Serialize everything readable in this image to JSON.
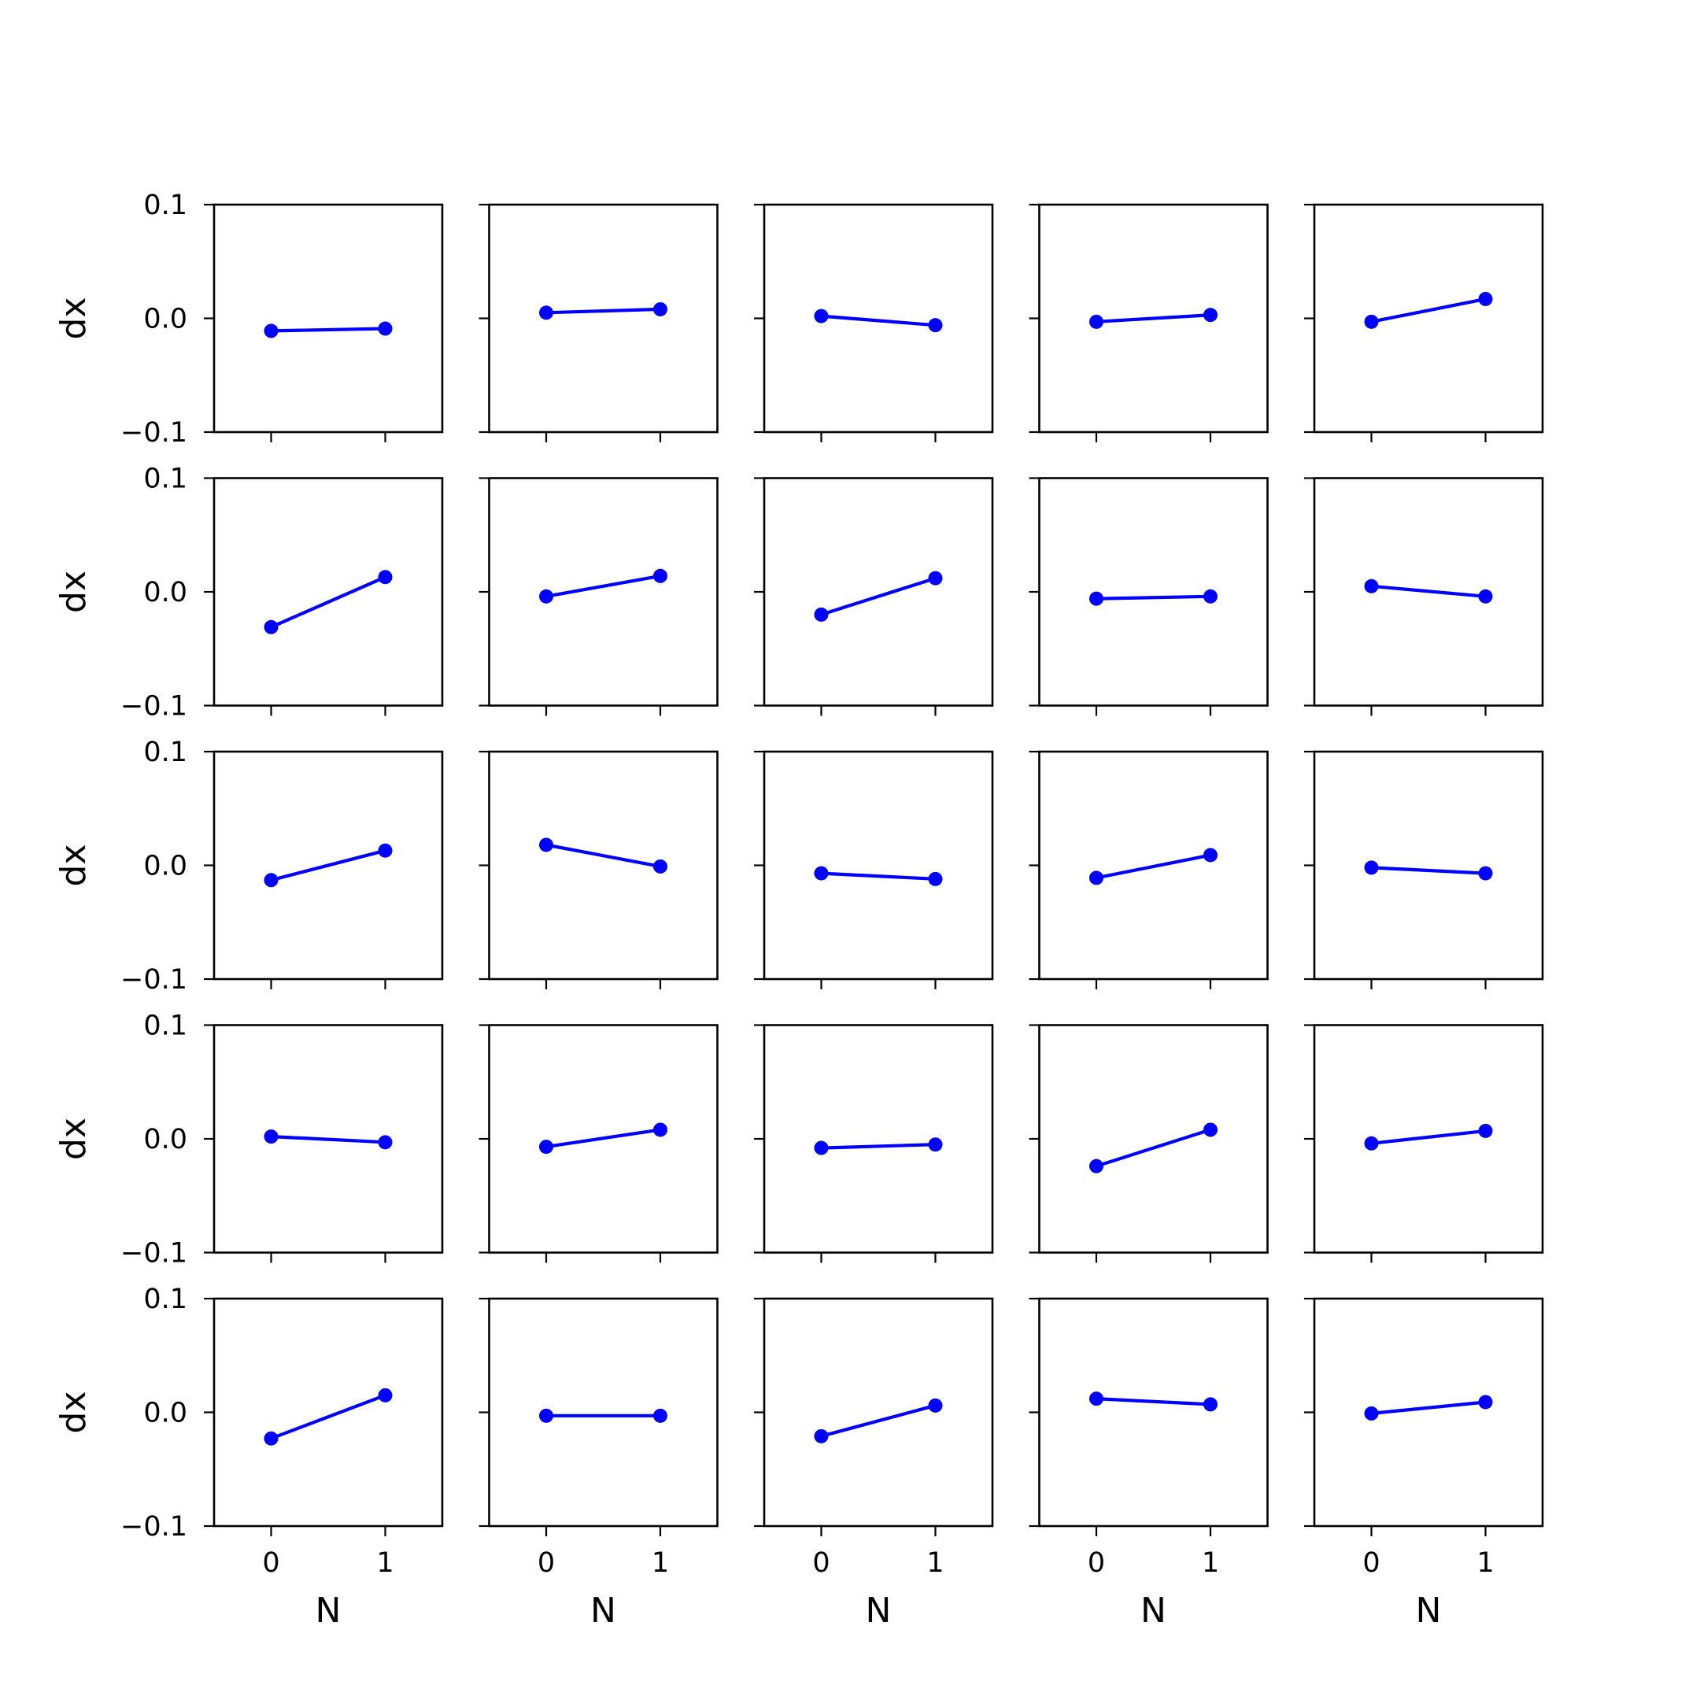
{
  "chart_data": {
    "type": "line",
    "layout": {
      "rows": 5,
      "cols": 5
    },
    "xlabel": "N",
    "ylabel": "dx",
    "xticks": [
      0,
      1
    ],
    "xtick_labels": [
      "0",
      "1"
    ],
    "xlim": [
      -0.5,
      1.5
    ],
    "yticks": [
      -0.1,
      0.0,
      0.1
    ],
    "ytick_labels": [
      "−0.1",
      "0.0",
      "0.1"
    ],
    "ylim": [
      -0.1,
      0.1
    ],
    "line_color": "#0000ff",
    "marker": "circle",
    "grid": false,
    "panels": [
      {
        "x": [
          0,
          1
        ],
        "y": [
          -0.011,
          -0.009
        ]
      },
      {
        "x": [
          0,
          1
        ],
        "y": [
          0.005,
          0.008
        ]
      },
      {
        "x": [
          0,
          1
        ],
        "y": [
          0.002,
          -0.006
        ]
      },
      {
        "x": [
          0,
          1
        ],
        "y": [
          -0.003,
          0.003
        ]
      },
      {
        "x": [
          0,
          1
        ],
        "y": [
          -0.003,
          0.017
        ]
      },
      {
        "x": [
          0,
          1
        ],
        "y": [
          -0.031,
          0.013
        ]
      },
      {
        "x": [
          0,
          1
        ],
        "y": [
          -0.004,
          0.014
        ]
      },
      {
        "x": [
          0,
          1
        ],
        "y": [
          -0.02,
          0.012
        ]
      },
      {
        "x": [
          0,
          1
        ],
        "y": [
          -0.006,
          -0.004
        ]
      },
      {
        "x": [
          0,
          1
        ],
        "y": [
          0.005,
          -0.004
        ]
      },
      {
        "x": [
          0,
          1
        ],
        "y": [
          -0.013,
          0.013
        ]
      },
      {
        "x": [
          0,
          1
        ],
        "y": [
          0.018,
          -0.001
        ]
      },
      {
        "x": [
          0,
          1
        ],
        "y": [
          -0.007,
          -0.012
        ]
      },
      {
        "x": [
          0,
          1
        ],
        "y": [
          -0.011,
          0.009
        ]
      },
      {
        "x": [
          0,
          1
        ],
        "y": [
          -0.002,
          -0.007
        ]
      },
      {
        "x": [
          0,
          1
        ],
        "y": [
          0.002,
          -0.003
        ]
      },
      {
        "x": [
          0,
          1
        ],
        "y": [
          -0.007,
          0.008
        ]
      },
      {
        "x": [
          0,
          1
        ],
        "y": [
          -0.008,
          -0.005
        ]
      },
      {
        "x": [
          0,
          1
        ],
        "y": [
          -0.024,
          0.008
        ]
      },
      {
        "x": [
          0,
          1
        ],
        "y": [
          -0.004,
          0.007
        ]
      },
      {
        "x": [
          0,
          1
        ],
        "y": [
          -0.023,
          0.015
        ]
      },
      {
        "x": [
          0,
          1
        ],
        "y": [
          -0.003,
          -0.003
        ]
      },
      {
        "x": [
          0,
          1
        ],
        "y": [
          -0.021,
          0.006
        ]
      },
      {
        "x": [
          0,
          1
        ],
        "y": [
          0.012,
          0.007
        ]
      },
      {
        "x": [
          0,
          1
        ],
        "y": [
          -0.001,
          0.009
        ]
      }
    ]
  }
}
